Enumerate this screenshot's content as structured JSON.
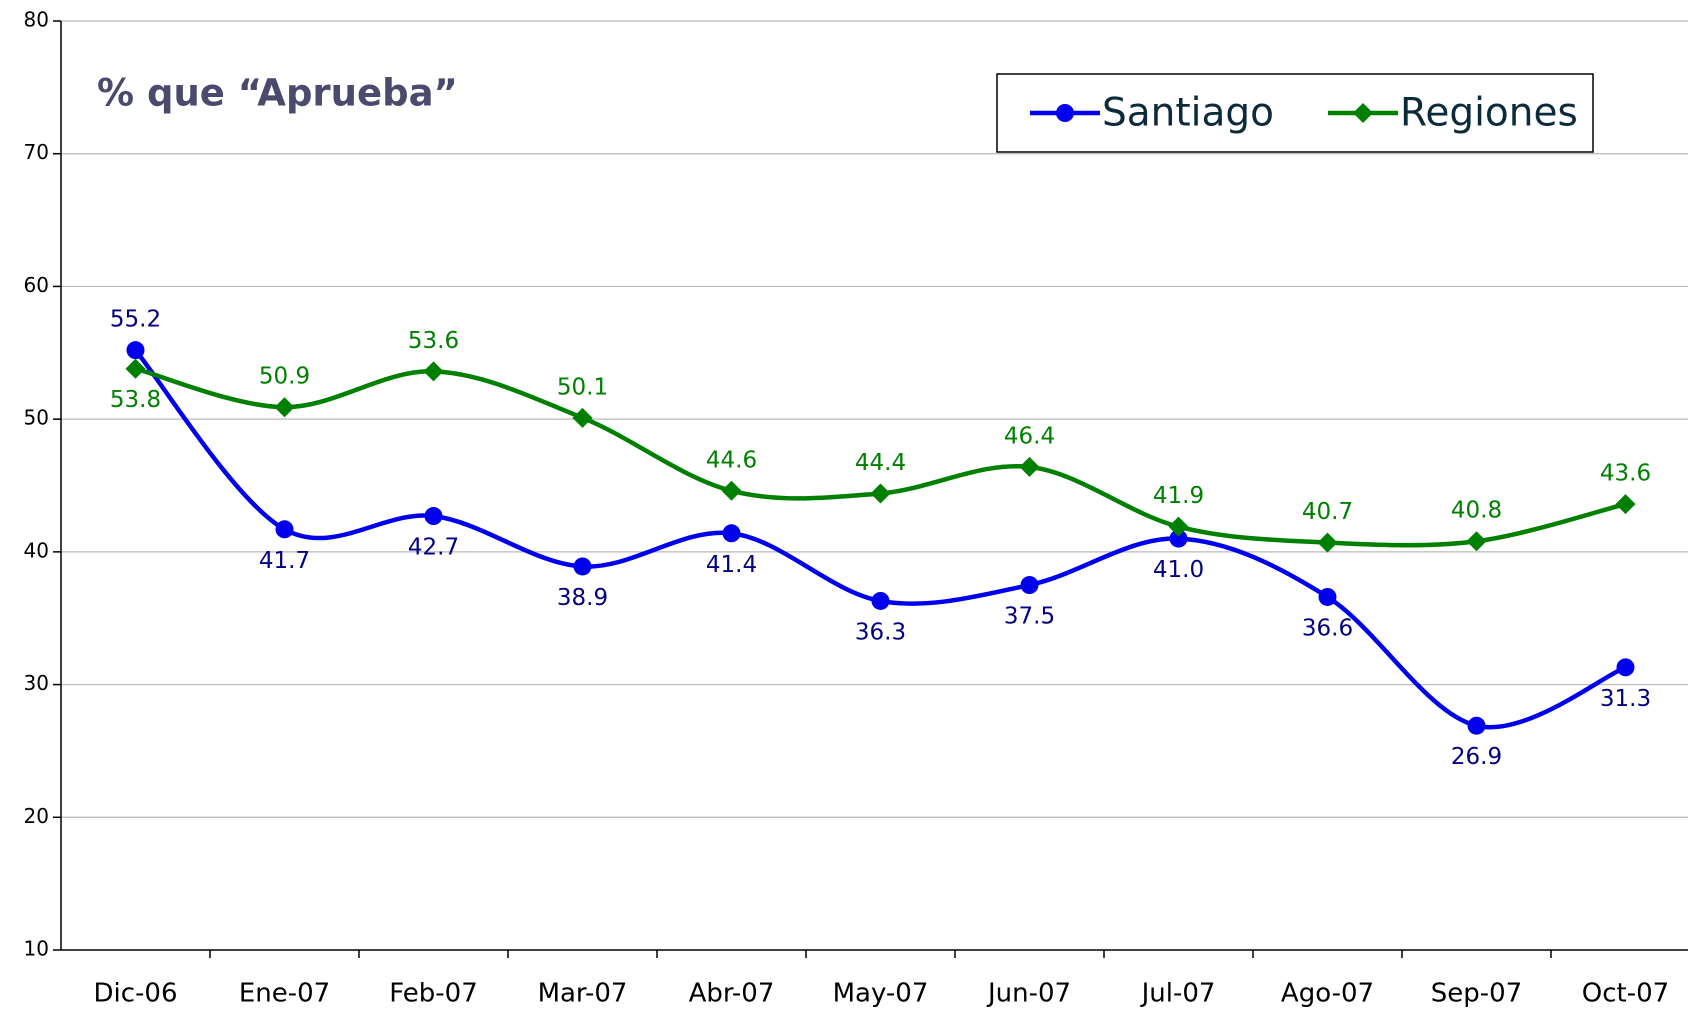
{
  "chart_data": {
    "type": "line",
    "title": "% que “Aprueba”",
    "categories": [
      "Dic-06",
      "Ene-07",
      "Feb-07",
      "Mar-07",
      "Abr-07",
      "May-07",
      "Jun-07",
      "Jul-07",
      "Ago-07",
      "Sep-07",
      "Oct-07"
    ],
    "series": [
      {
        "name": "Santiago",
        "color": "#0000ee",
        "marker": "circle",
        "values": [
          55.2,
          41.7,
          42.7,
          38.9,
          41.4,
          36.3,
          37.5,
          41.0,
          36.6,
          26.9,
          31.3
        ],
        "value_labels": [
          "55.2",
          "41.7",
          "42.7",
          "38.9",
          "41.4",
          "36.3",
          "37.5",
          "41.0",
          "36.6",
          "26.9",
          "31.3"
        ],
        "label_color": "#000080"
      },
      {
        "name": "Regiones",
        "color": "#008000",
        "marker": "diamond",
        "values": [
          53.8,
          50.9,
          53.6,
          50.1,
          44.6,
          44.4,
          46.4,
          41.9,
          40.7,
          40.8,
          43.6
        ],
        "label_color": "#008000"
      }
    ],
    "ylim": [
      10,
      80
    ],
    "yticks": [
      10,
      20,
      30,
      40,
      50,
      60,
      70,
      80
    ],
    "grid": true,
    "smooth": true,
    "legend": "top-right"
  }
}
